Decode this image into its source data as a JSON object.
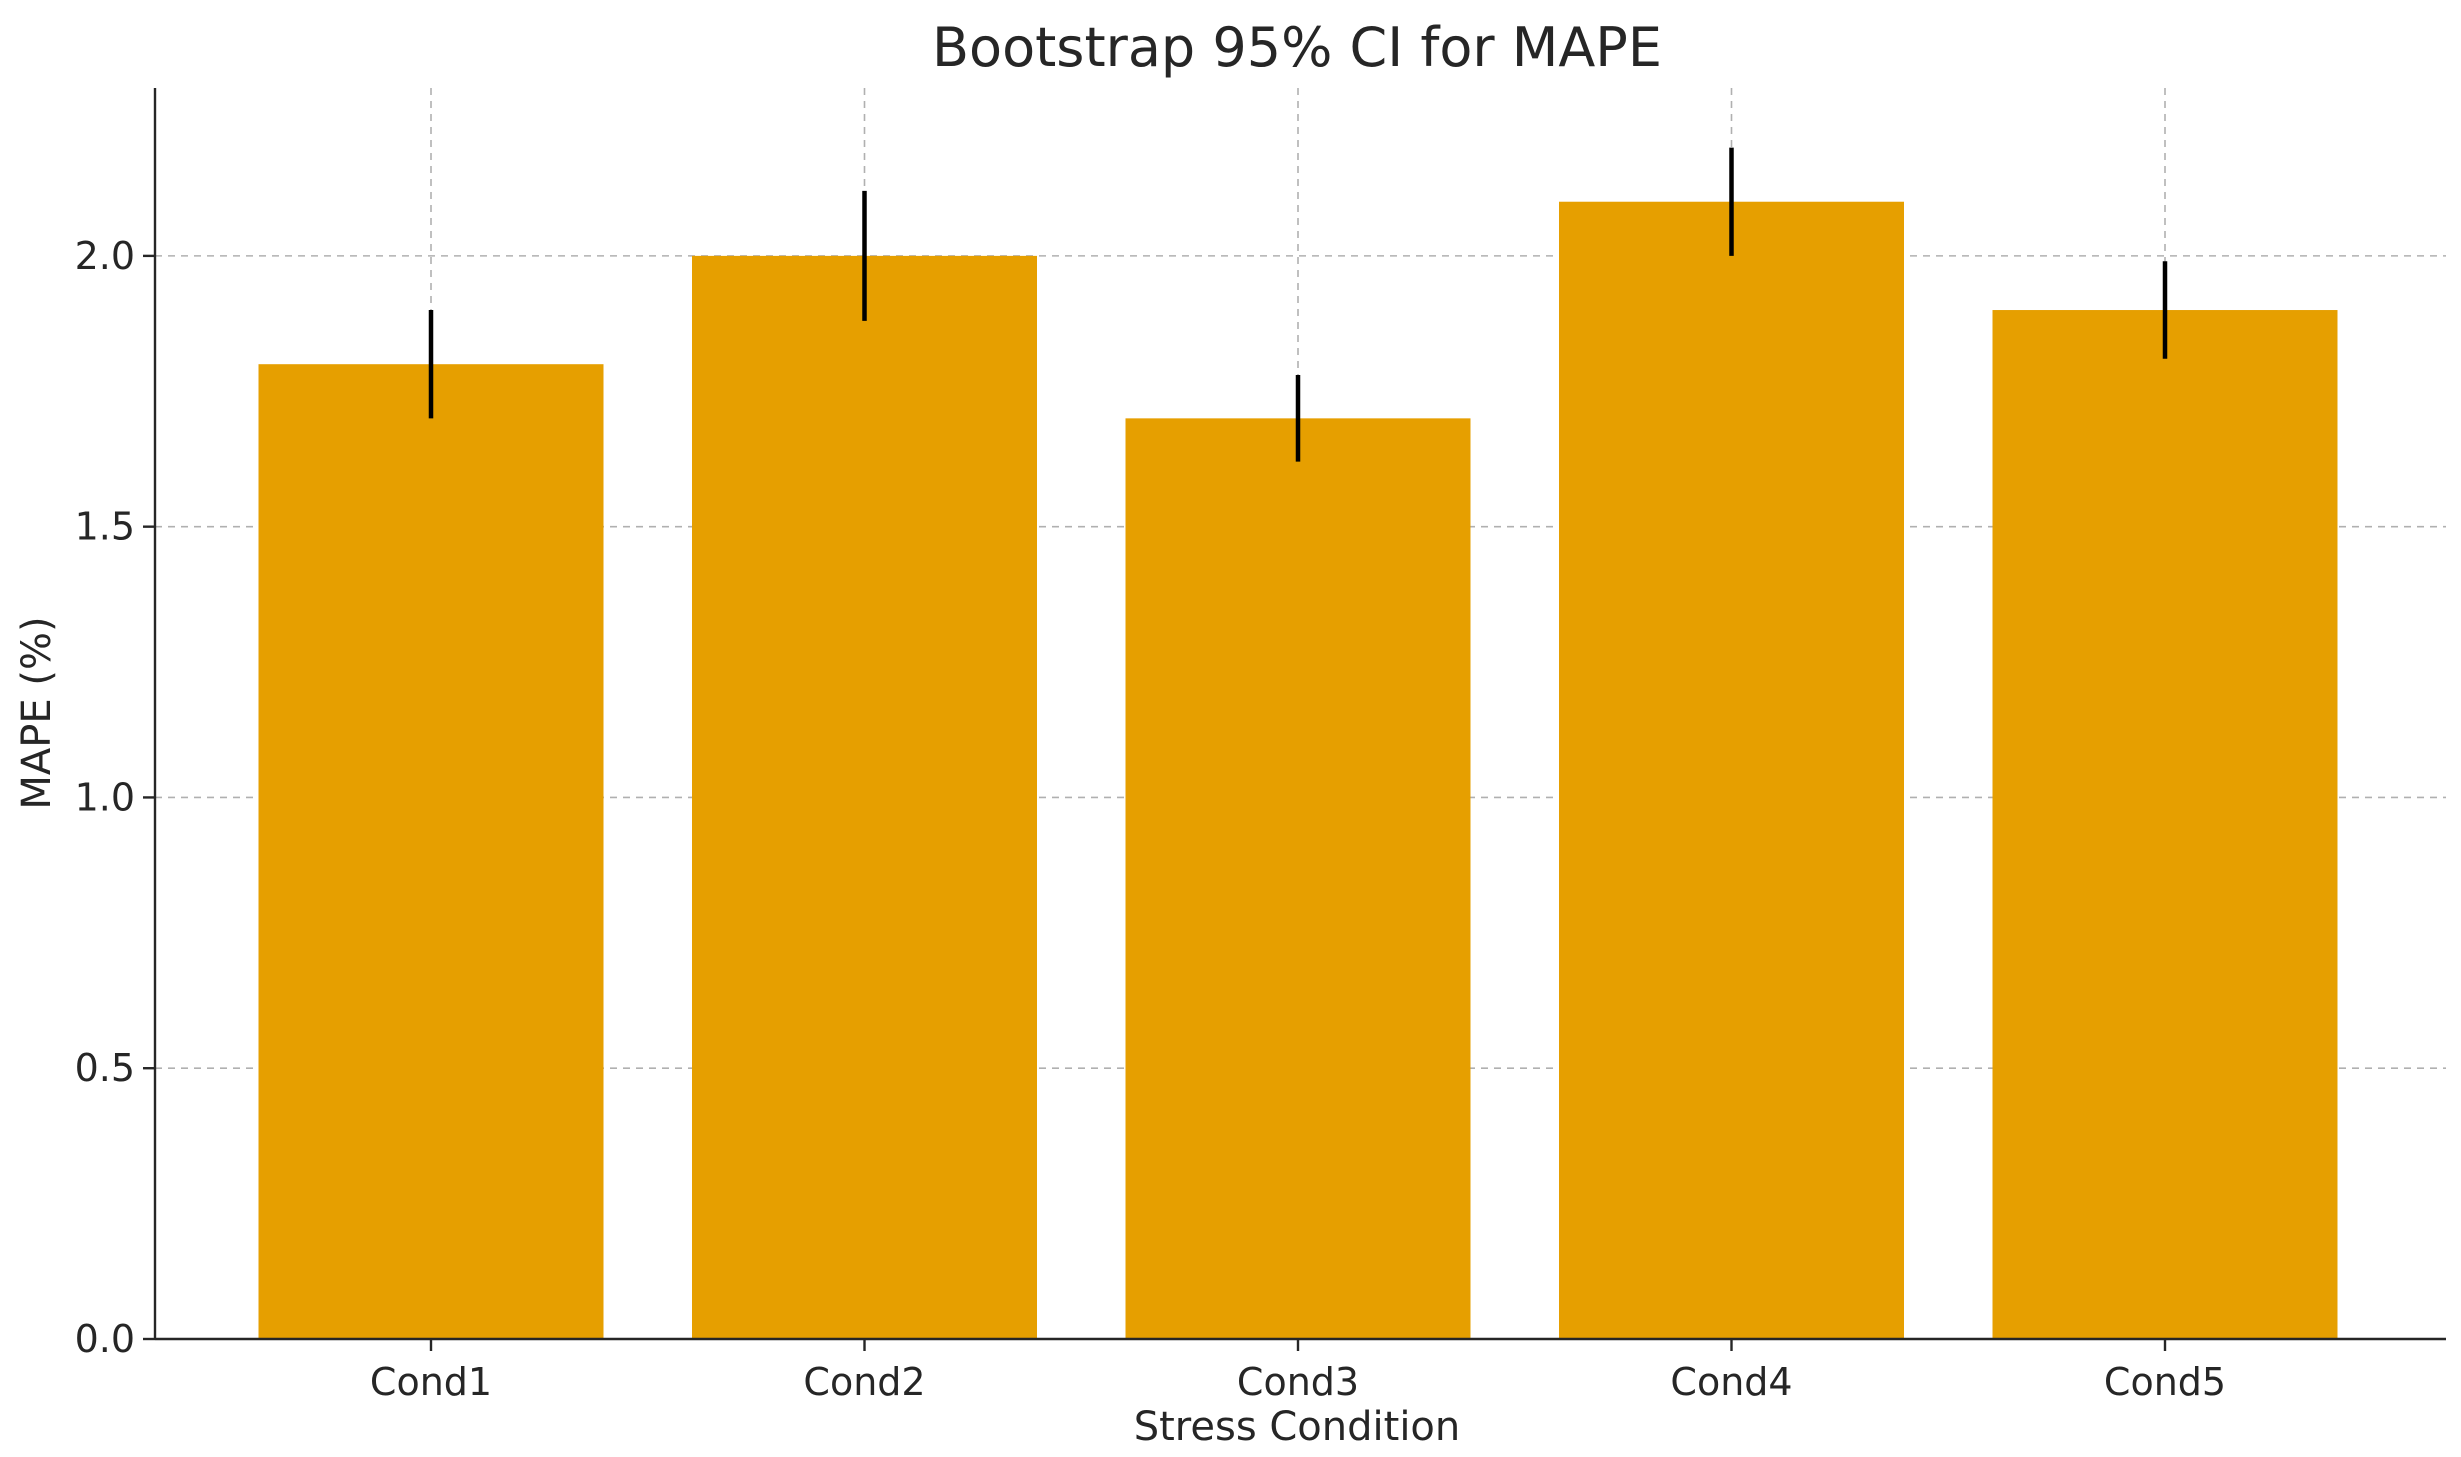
{
  "chart_data": {
    "type": "bar",
    "title": "Bootstrap 95% CI for MAPE",
    "xlabel": "Stress Condition",
    "ylabel": "MAPE (%)",
    "categories": [
      "Cond1",
      "Cond2",
      "Cond3",
      "Cond4",
      "Cond5"
    ],
    "values": [
      1.8,
      2.0,
      1.7,
      2.1,
      1.9
    ],
    "error_low": [
      1.7,
      1.88,
      1.62,
      2.0,
      1.81
    ],
    "error_high": [
      1.9,
      2.12,
      1.78,
      2.2,
      1.99
    ],
    "ylim": [
      0,
      2.31
    ],
    "yticks": [
      0.0,
      0.5,
      1.0,
      1.5,
      2.0
    ],
    "ytick_labels": [
      "0.0",
      "0.5",
      "1.0",
      "1.5",
      "2.0"
    ],
    "grid": true,
    "colors": {
      "bar": "#e69f00",
      "error": "#000000"
    }
  }
}
